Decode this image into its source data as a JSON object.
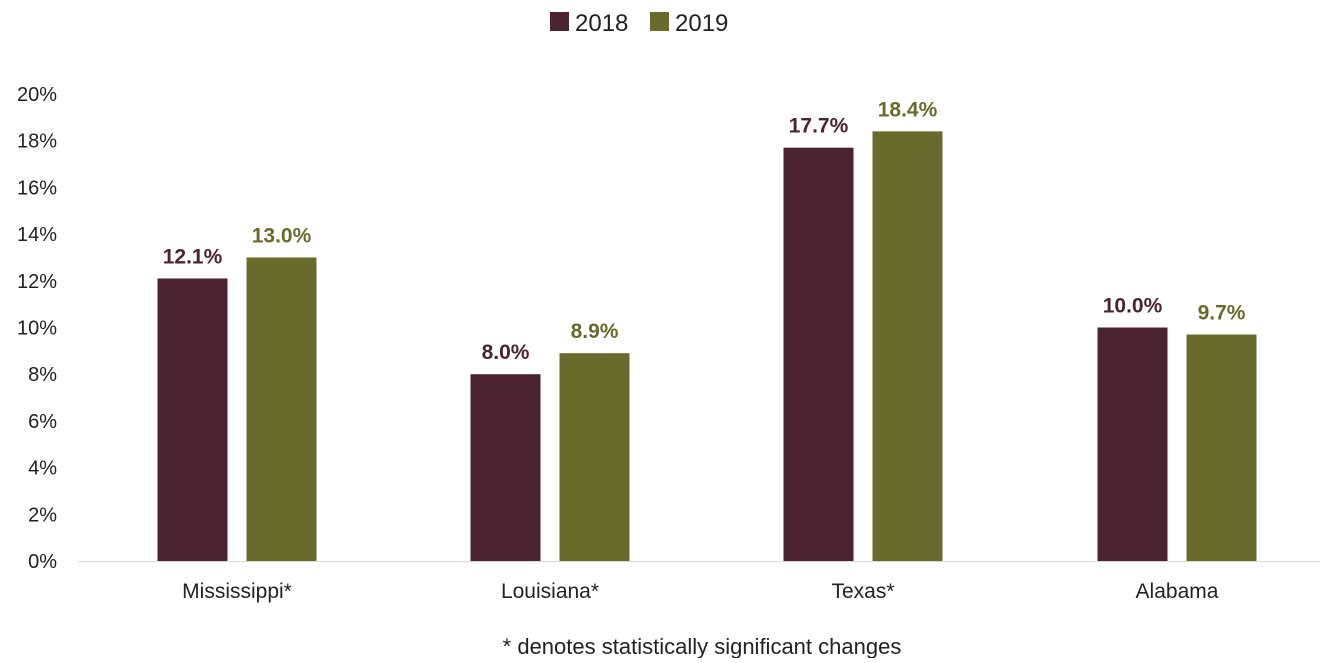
{
  "chart_data": {
    "type": "bar",
    "categories": [
      "Mississippi*",
      "Louisiana*",
      "Texas*",
      "Alabama"
    ],
    "series": [
      {
        "name": "2018",
        "values": [
          12.1,
          8.0,
          17.7,
          10.0
        ],
        "labels": [
          "12.1%",
          "8.0%",
          "17.7%",
          "10.0%"
        ],
        "color": "#4a2431"
      },
      {
        "name": "2019",
        "values": [
          13.0,
          8.9,
          18.4,
          9.7
        ],
        "labels": [
          "13.0%",
          "8.9%",
          "18.4%",
          "9.7%"
        ],
        "color": "#686b2c"
      }
    ],
    "ylim": [
      0,
      20
    ],
    "yticks": [
      "0%",
      "2%",
      "4%",
      "6%",
      "8%",
      "10%",
      "12%",
      "14%",
      "16%",
      "18%",
      "20%"
    ],
    "legend_position": "top-center",
    "grid": false,
    "footnote": "* denotes statistically significant changes"
  }
}
